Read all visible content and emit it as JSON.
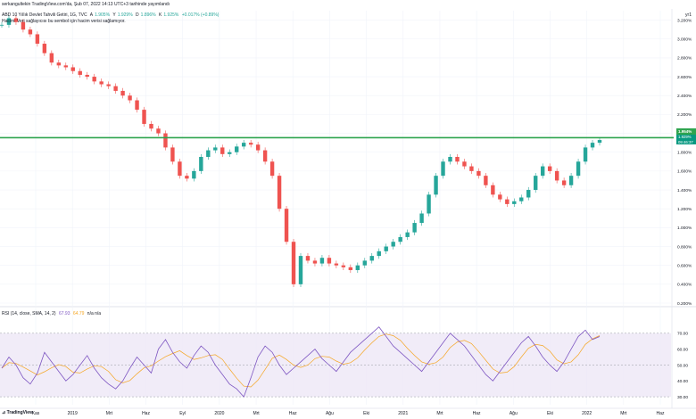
{
  "header": {
    "publisher_line": "serkangultekin TradingView.com'da, Şub 07, 2022 14:13 UTC+3 tarihinde yayımlandı",
    "symbol_line": "ABD 10 Yıllık Devlet Tahvili Getiri, 1G, TVC",
    "ohlc": {
      "open_label": "A",
      "open": "1.905%",
      "high_label": "Y",
      "high": "1.929%",
      "low_label": "D",
      "low": "1.896%",
      "close_label": "K",
      "close": "1.925%",
      "change": "+0.017% (+0.89%)"
    },
    "volume_note": "Hacim: Veri sağlayıcısı bu sembol için hacim verisi sağlamıyor."
  },
  "price_axis": {
    "unit_label": "yr1",
    "ticks": [
      "3.200%",
      "3.000%",
      "2.800%",
      "2.600%",
      "2.400%",
      "2.200%",
      "2.000%",
      "1.800%",
      "1.600%",
      "1.400%",
      "1.200%",
      "1.000%",
      "0.800%",
      "0.600%",
      "0.400%",
      "0.200%"
    ],
    "line_tag": "1.954%",
    "price_tag_value": "1.929%",
    "price_tag_time": "09:46:37"
  },
  "rsi": {
    "label": "RSI (14, close, SMA, 14, 2)",
    "value": "67.93",
    "ma_value": "64.79",
    "extra": "n/a n/a",
    "ticks": [
      "70.00",
      "60.00",
      "50.00",
      "40.00",
      "30.00"
    ]
  },
  "time_axis": [
    "Kas",
    "2019",
    "Mrt",
    "Haz",
    "Eyl",
    "2020",
    "Mrt",
    "Haz",
    "Ağu",
    "Eki",
    "2021",
    "Mrt",
    "Haz",
    "Ağu",
    "Eki",
    "2022",
    "Mrt",
    "Haz"
  ],
  "branding": {
    "logo_text": "TradingView"
  },
  "colors": {
    "up": "#26a69a",
    "down": "#ef5350",
    "level_line": "#2fa44f",
    "rsi_line": "#7e57c2",
    "rsi_ma": "#f5a623",
    "rsi_band": "#ede7f6"
  },
  "chart_data": {
    "type": "line",
    "title": "ABD 10 Yıllık Devlet Tahvili Getiri, 1G, TVC",
    "series": [
      {
        "name": "ABD 10 Yıllık Devlet Tahvili Getiri",
        "values": [
          3.15,
          3.22,
          3.18,
          3.1,
          3.05,
          2.95,
          2.85,
          2.75,
          2.72,
          2.7,
          2.66,
          2.62,
          2.6,
          2.55,
          2.52,
          2.5,
          2.45,
          2.4,
          2.35,
          2.25,
          2.1,
          2.05,
          2.0,
          1.85,
          1.7,
          1.55,
          1.52,
          1.6,
          1.75,
          1.82,
          1.85,
          1.78,
          1.8,
          1.86,
          1.9,
          1.88,
          1.82,
          1.7,
          1.55,
          1.2,
          0.85,
          0.4,
          0.7,
          0.65,
          0.62,
          0.68,
          0.62,
          0.6,
          0.58,
          0.55,
          0.6,
          0.65,
          0.7,
          0.75,
          0.8,
          0.85,
          0.9,
          0.95,
          1.05,
          1.15,
          1.35,
          1.55,
          1.7,
          1.75,
          1.7,
          1.65,
          1.6,
          1.55,
          1.45,
          1.35,
          1.3,
          1.25,
          1.28,
          1.32,
          1.4,
          1.55,
          1.65,
          1.6,
          1.5,
          1.45,
          1.55,
          1.7,
          1.85,
          1.9,
          1.929
        ]
      }
    ],
    "level_line": 1.954,
    "ylim": [
      0.2,
      3.3
    ],
    "rsi_series": [
      48,
      55,
      50,
      42,
      38,
      45,
      58,
      52,
      46,
      40,
      44,
      50,
      56,
      48,
      42,
      38,
      35,
      40,
      48,
      55,
      50,
      45,
      60,
      66,
      58,
      52,
      48,
      56,
      62,
      58,
      50,
      44,
      38,
      35,
      30,
      42,
      55,
      62,
      58,
      50,
      44,
      48,
      52,
      56,
      60,
      54,
      50,
      46,
      52,
      58,
      62,
      66,
      70,
      74,
      68,
      62,
      58,
      54,
      50,
      46,
      52,
      58,
      64,
      70,
      66,
      62,
      56,
      50,
      44,
      40,
      46,
      52,
      58,
      64,
      68,
      62,
      55,
      50,
      46,
      52,
      60,
      68,
      72,
      66,
      67.93
    ],
    "rsi_ylim": [
      25,
      80
    ]
  }
}
